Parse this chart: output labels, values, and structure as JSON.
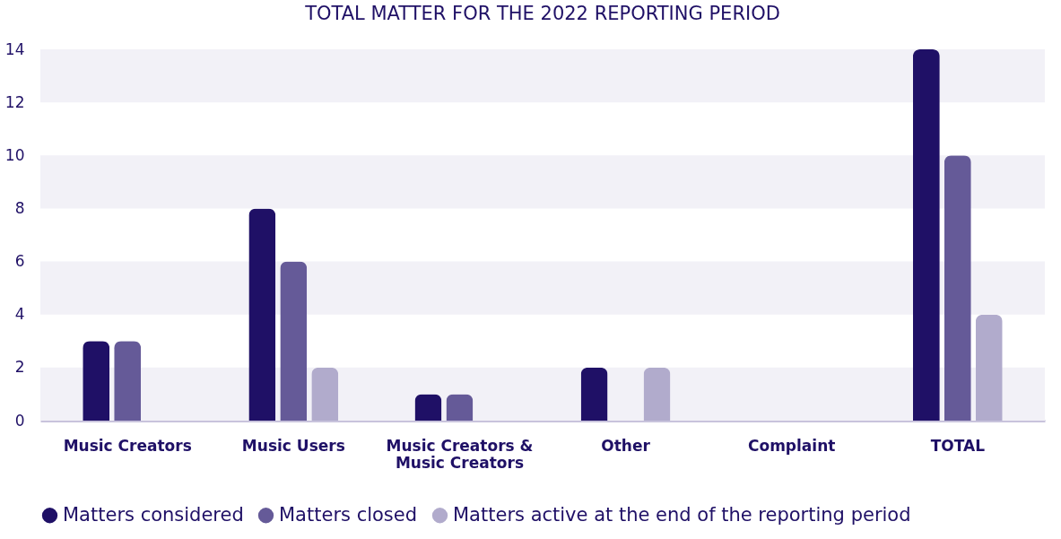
{
  "chart_data": {
    "type": "bar",
    "title": "TOTAL MATTER FOR THE 2022 REPORTING PERIOD",
    "categories": [
      "Music Creators",
      "Music Users",
      "Music Creators & Music Creators",
      "Other",
      "Complaint",
      "TOTAL"
    ],
    "series": [
      {
        "name": "Matters considered",
        "color": "#1f1066",
        "values": [
          3,
          8,
          1,
          2,
          0,
          14
        ]
      },
      {
        "name": "Matters closed",
        "color": "#655a98",
        "values": [
          3,
          6,
          1,
          0,
          0,
          10
        ]
      },
      {
        "name": "Matters active at the end of the reporting period",
        "color": "#b1abcc",
        "values": [
          0,
          2,
          0,
          2,
          0,
          4
        ]
      }
    ],
    "ylim": [
      0,
      14
    ],
    "yticks": [
      0,
      2,
      4,
      6,
      8,
      10,
      12,
      14
    ],
    "bands": [
      {
        "axis": "y",
        "from": 0,
        "to": 2,
        "color": "#f2f1f7"
      },
      {
        "axis": "y",
        "from": 4,
        "to": 6,
        "color": "#f2f1f7"
      },
      {
        "axis": "y",
        "from": 8,
        "to": 10,
        "color": "#f2f1f7"
      },
      {
        "axis": "y",
        "from": 12,
        "to": 14,
        "color": "#f2f1f7"
      }
    ],
    "grid": false,
    "legend": "bottom"
  }
}
